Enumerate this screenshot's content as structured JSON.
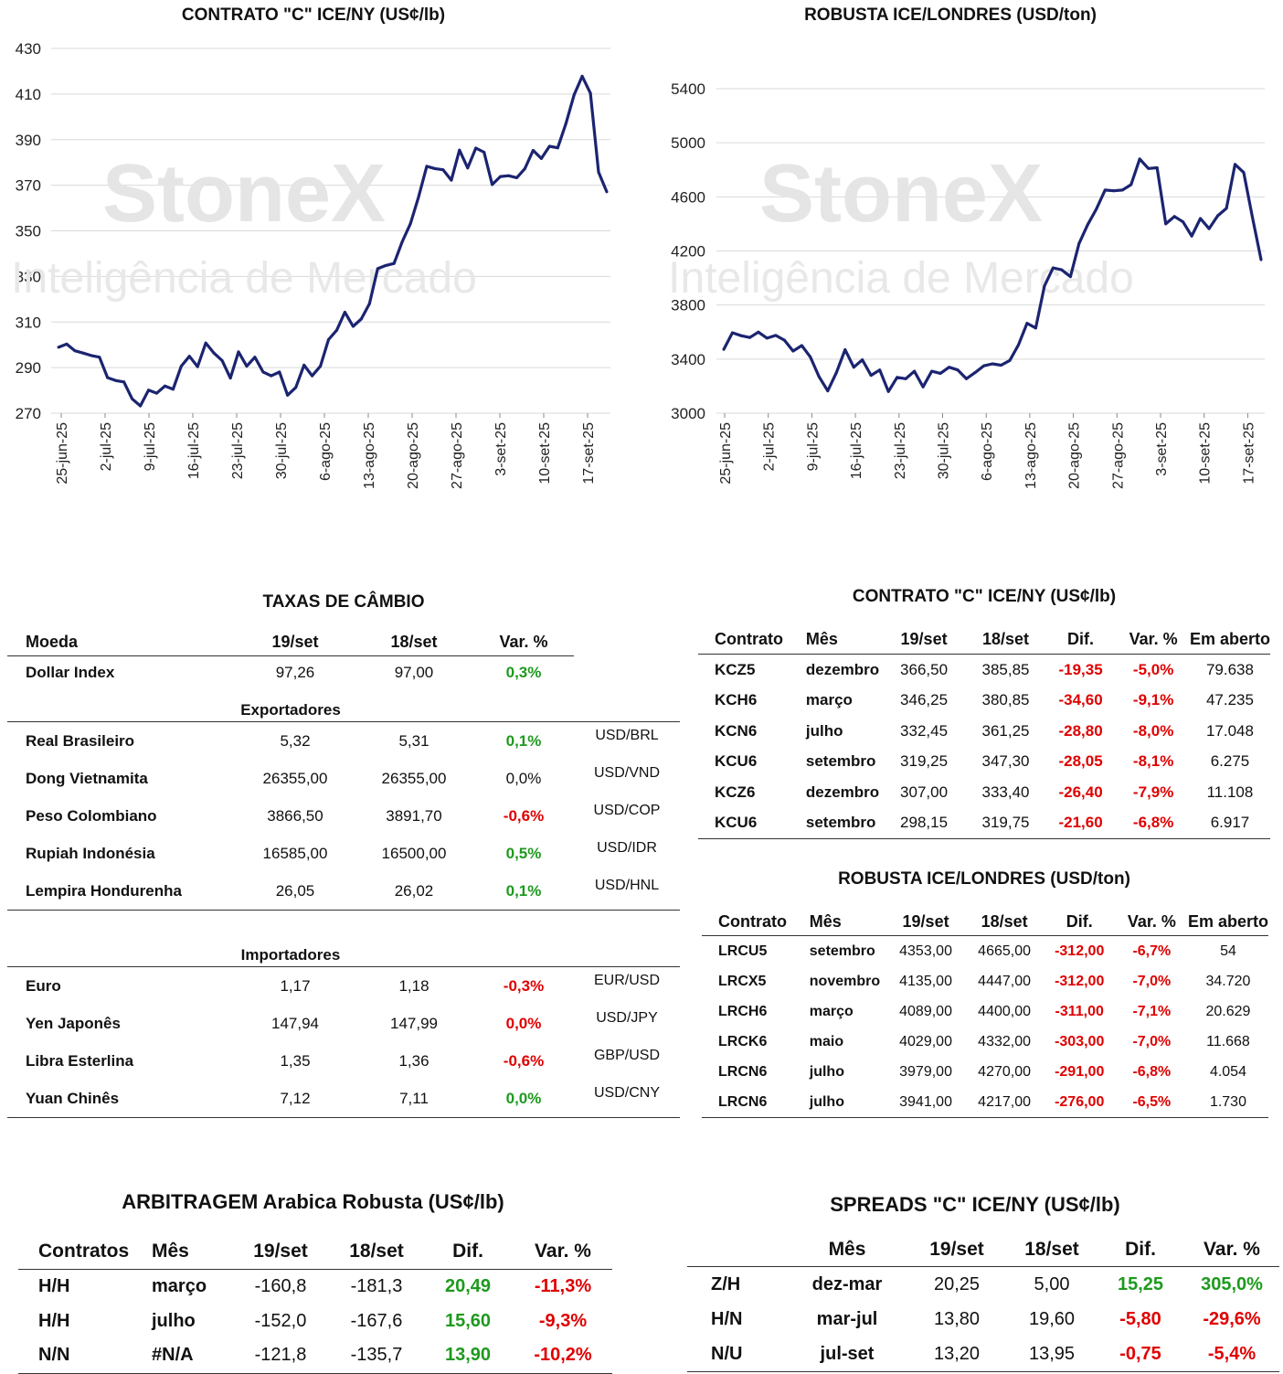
{
  "charts": {
    "arabica_title": "CONTRATO \"C\" ICE/NY (US¢/lb)",
    "robusta_title": "ROBUSTA ICE/LONDRES (USD/ton)",
    "watermark_brand": "StoneX",
    "watermark_sub": "Inteligência de Mercado"
  },
  "chart_data": [
    {
      "type": "line",
      "title": "CONTRATO \"C\" ICE/NY (US¢/lb)",
      "ylim": [
        270,
        430
      ],
      "yticks": [
        270,
        290,
        310,
        330,
        350,
        370,
        390,
        410,
        430
      ],
      "xtick_labels": [
        "25-jun-25",
        "2-jul-25",
        "9-jul-25",
        "16-jul-25",
        "23-jul-25",
        "30-jul-25",
        "6-ago-25",
        "13-ago-25",
        "20-ago-25",
        "27-ago-25",
        "3-set-25",
        "10-set-25",
        "17-set-25"
      ],
      "grid": true,
      "color": "#1b2470",
      "values": [
        298.9,
        300.3,
        297.4,
        296.4,
        295.3,
        294.6,
        285.6,
        284.3,
        283.7,
        276.3,
        273.2,
        280.1,
        278.8,
        281.9,
        280.5,
        290.6,
        295.0,
        290.4,
        300.8,
        296.4,
        293.1,
        285.4,
        296.9,
        290.6,
        294.6,
        288.1,
        286.4,
        288.1,
        277.9,
        281.3,
        291.1,
        286.4,
        290.6,
        302.3,
        306.4,
        314.3,
        308.1,
        311.3,
        318.0,
        333.4,
        334.8,
        335.7,
        345.2,
        353.1,
        364.8,
        378.3,
        377.3,
        376.8,
        372.2,
        385.4,
        377.6,
        386.3,
        384.5,
        370.3,
        373.8,
        374.2,
        373.3,
        377.3,
        385.3,
        381.7,
        387.1,
        386.4,
        396.9,
        409.6,
        417.8,
        410.4,
        375.8,
        367.1
      ],
      "x_count": 68
    },
    {
      "type": "line",
      "title": "ROBUSTA ICE/LONDRES (USD/ton)",
      "ylim": [
        3000,
        5400
      ],
      "yticks": [
        3000,
        3400,
        3800,
        4200,
        4600,
        5000,
        5400
      ],
      "xtick_labels": [
        "25-jun-25",
        "2-jul-25",
        "9-jul-25",
        "16-jul-25",
        "23-jul-25",
        "30-jul-25",
        "6-ago-25",
        "13-ago-25",
        "20-ago-25",
        "27-ago-25",
        "3-set-25",
        "10-set-25",
        "17-set-25"
      ],
      "grid": true,
      "color": "#1b2470",
      "values": [
        3472,
        3595,
        3573,
        3560,
        3600,
        3555,
        3575,
        3540,
        3460,
        3500,
        3415,
        3270,
        3165,
        3300,
        3470,
        3340,
        3395,
        3280,
        3320,
        3160,
        3265,
        3255,
        3310,
        3195,
        3310,
        3295,
        3340,
        3320,
        3255,
        3300,
        3350,
        3365,
        3355,
        3390,
        3505,
        3665,
        3630,
        3940,
        4075,
        4060,
        4010,
        4255,
        4395,
        4510,
        4650,
        4645,
        4650,
        4690,
        4880,
        4810,
        4815,
        4400,
        4455,
        4415,
        4310,
        4440,
        4365,
        4460,
        4515,
        4840,
        4780,
        4450,
        4135
      ],
      "x_count": 63
    }
  ],
  "fx": {
    "title": "TAXAS DE CÂMBIO",
    "headers": [
      "Moeda",
      "19/set",
      "18/set",
      "Var. %"
    ],
    "dollar": {
      "name": "Dollar Index",
      "v19": "97,26",
      "v18": "97,00",
      "var": "0,3%",
      "sign": "pos"
    },
    "exporters_label": "Exportadores",
    "exporters": [
      {
        "name": "Real Brasileiro",
        "v19": "5,32",
        "v18": "5,31",
        "var": "0,1%",
        "sign": "pos",
        "pair": "USD/BRL"
      },
      {
        "name": "Dong Vietnamita",
        "v19": "26355,00",
        "v18": "26355,00",
        "var": "0,0%",
        "sign": "neutral",
        "pair": "USD/VND"
      },
      {
        "name": "Peso Colombiano",
        "v19": "3866,50",
        "v18": "3891,70",
        "var": "-0,6%",
        "sign": "neg",
        "pair": "USD/COP"
      },
      {
        "name": "Rupiah Indonésia",
        "v19": "16585,00",
        "v18": "16500,00",
        "var": "0,5%",
        "sign": "pos",
        "pair": "USD/IDR"
      },
      {
        "name": "Lempira Hondurenha",
        "v19": "26,05",
        "v18": "26,02",
        "var": "0,1%",
        "sign": "pos",
        "pair": "USD/HNL"
      }
    ],
    "importers_label": "Importadores",
    "importers": [
      {
        "name": "Euro",
        "v19": "1,17",
        "v18": "1,18",
        "var": "-0,3%",
        "sign": "neg",
        "pair": "EUR/USD"
      },
      {
        "name": "Yen Japonês",
        "v19": "147,94",
        "v18": "147,99",
        "var": "0,0%",
        "sign": "neg",
        "pair": "USD/JPY"
      },
      {
        "name": "Libra Esterlina",
        "v19": "1,35",
        "v18": "1,36",
        "var": "-0,6%",
        "sign": "neg",
        "pair": "GBP/USD"
      },
      {
        "name": "Yuan Chinês",
        "v19": "7,12",
        "v18": "7,11",
        "var": "0,0%",
        "sign": "pos",
        "pair": "USD/CNY"
      }
    ]
  },
  "kc": {
    "title": "CONTRATO \"C\" ICE/NY (US¢/lb)",
    "headers": [
      "Contrato",
      "Mês",
      "19/set",
      "18/set",
      "Dif.",
      "Var. %",
      "Em aberto"
    ],
    "rows": [
      {
        "c": "KCZ5",
        "m": "dezembro",
        "v19": "366,50",
        "v18": "385,85",
        "dif": "-19,35",
        "var": "-5,0%",
        "oi": "79.638"
      },
      {
        "c": "KCH6",
        "m": "março",
        "v19": "346,25",
        "v18": "380,85",
        "dif": "-34,60",
        "var": "-9,1%",
        "oi": "47.235"
      },
      {
        "c": "KCN6",
        "m": "julho",
        "v19": "332,45",
        "v18": "361,25",
        "dif": "-28,80",
        "var": "-8,0%",
        "oi": "17.048"
      },
      {
        "c": "KCU6",
        "m": "setembro",
        "v19": "319,25",
        "v18": "347,30",
        "dif": "-28,05",
        "var": "-8,1%",
        "oi": "6.275"
      },
      {
        "c": "KCZ6",
        "m": "dezembro",
        "v19": "307,00",
        "v18": "333,40",
        "dif": "-26,40",
        "var": "-7,9%",
        "oi": "11.108"
      },
      {
        "c": "KCU6",
        "m": "setembro",
        "v19": "298,15",
        "v18": "319,75",
        "dif": "-21,60",
        "var": "-6,8%",
        "oi": "6.917"
      }
    ]
  },
  "rb": {
    "title": "ROBUSTA ICE/LONDRES (USD/ton)",
    "headers": [
      "Contrato",
      "Mês",
      "19/set",
      "18/set",
      "Dif.",
      "Var. %",
      "Em aberto"
    ],
    "rows": [
      {
        "c": "LRCU5",
        "m": "setembro",
        "v19": "4353,00",
        "v18": "4665,00",
        "dif": "-312,00",
        "var": "-6,7%",
        "oi": "54"
      },
      {
        "c": "LRCX5",
        "m": "novembro",
        "v19": "4135,00",
        "v18": "4447,00",
        "dif": "-312,00",
        "var": "-7,0%",
        "oi": "34.720"
      },
      {
        "c": "LRCH6",
        "m": "março",
        "v19": "4089,00",
        "v18": "4400,00",
        "dif": "-311,00",
        "var": "-7,1%",
        "oi": "20.629"
      },
      {
        "c": "LRCK6",
        "m": "maio",
        "v19": "4029,00",
        "v18": "4332,00",
        "dif": "-303,00",
        "var": "-7,0%",
        "oi": "11.668"
      },
      {
        "c": "LRCN6",
        "m": "julho",
        "v19": "3979,00",
        "v18": "4270,00",
        "dif": "-291,00",
        "var": "-6,8%",
        "oi": "4.054"
      },
      {
        "c": "LRCN6",
        "m": "julho",
        "v19": "3941,00",
        "v18": "4217,00",
        "dif": "-276,00",
        "var": "-6,5%",
        "oi": "1.730"
      }
    ]
  },
  "arb": {
    "title": "ARBITRAGEM Arabica Robusta (US¢/lb)",
    "headers": [
      "Contratos",
      "Mês",
      "19/set",
      "18/set",
      "Dif.",
      "Var. %"
    ],
    "rows": [
      {
        "c": "H/H",
        "m": "março",
        "v19": "-160,8",
        "v18": "-181,3",
        "dif": "20,49",
        "var": "-11,3%"
      },
      {
        "c": "H/H",
        "m": "julho",
        "v19": "-152,0",
        "v18": "-167,6",
        "dif": "15,60",
        "var": "-9,3%"
      },
      {
        "c": "N/N",
        "m": "#N/A",
        "v19": "-121,8",
        "v18": "-135,7",
        "dif": "13,90",
        "var": "-10,2%"
      }
    ]
  },
  "spreads": {
    "title": "SPREADS \"C\" ICE/NY (US¢/lb)",
    "headers": [
      "",
      "Mês",
      "19/set",
      "18/set",
      "Dif.",
      "Var. %"
    ],
    "rows": [
      {
        "c": "Z/H",
        "m": "dez-mar",
        "v19": "20,25",
        "v18": "5,00",
        "dif": "15,25",
        "var": "305,0%",
        "sign": "pos"
      },
      {
        "c": "H/N",
        "m": "mar-jul",
        "v19": "13,80",
        "v18": "19,60",
        "dif": "-5,80",
        "var": "-29,6%",
        "sign": "neg"
      },
      {
        "c": "N/U",
        "m": "jul-set",
        "v19": "13,20",
        "v18": "13,95",
        "dif": "-0,75",
        "var": "-5,4%",
        "sign": "neg"
      }
    ]
  }
}
